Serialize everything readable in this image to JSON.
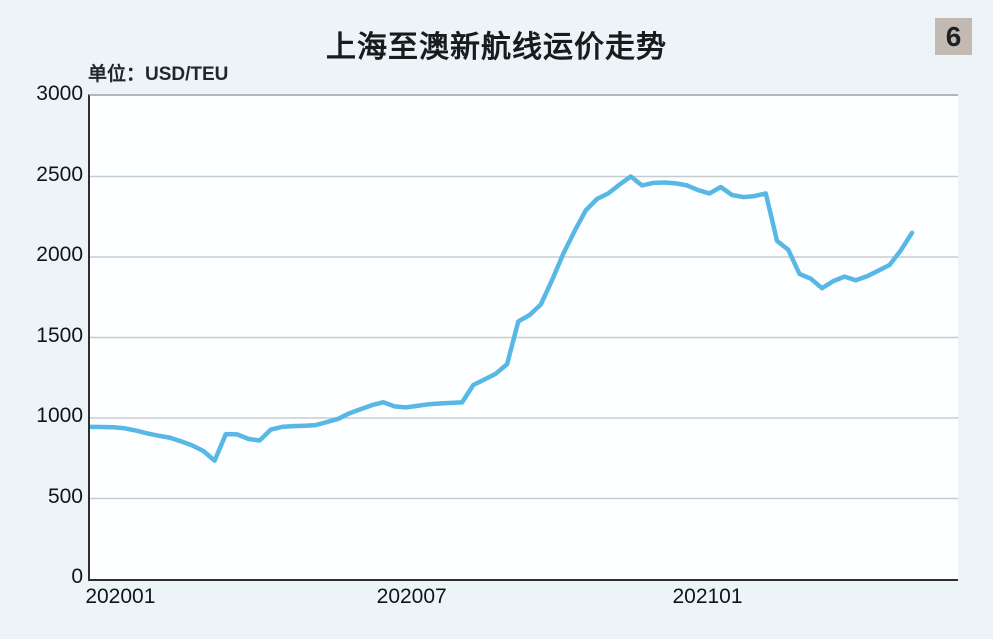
{
  "header": {
    "title": "上海至澳新航线运价走势",
    "badge": "6",
    "unit_label": "单位：USD/TEU"
  },
  "chart_data": {
    "type": "line",
    "title": "上海至澳新航线运价走势",
    "ylabel": "USD/TEU",
    "ylim": [
      0,
      3000
    ],
    "y_ticks": [
      0,
      500,
      1000,
      1500,
      2000,
      2500,
      3000
    ],
    "y_gridlines": [
      500,
      1000,
      1500,
      2000,
      2500
    ],
    "grid": "horizontal",
    "legend": "none",
    "x_ticks": [
      {
        "label": "202001",
        "week_index": 2.8
      },
      {
        "label": "202007",
        "week_index": 28.7
      },
      {
        "label": "202101",
        "week_index": 55.0
      }
    ],
    "x_start_frac": 0.001,
    "x_end_frac": 0.947,
    "series": [
      {
        "name": "上海至澳新航线运价 (USD/TEU)",
        "frequency": "weekly",
        "values": [
          945,
          944,
          942,
          936,
          922,
          905,
          890,
          878,
          855,
          830,
          795,
          735,
          900,
          898,
          870,
          860,
          928,
          945,
          950,
          952,
          956,
          975,
          995,
          1030,
          1055,
          1080,
          1098,
          1072,
          1066,
          1075,
          1085,
          1090,
          1094,
          1097,
          1205,
          1240,
          1275,
          1335,
          1600,
          1640,
          1705,
          1855,
          2020,
          2160,
          2290,
          2360,
          2395,
          2450,
          2500,
          2445,
          2460,
          2463,
          2457,
          2445,
          2415,
          2395,
          2435,
          2385,
          2372,
          2378,
          2395,
          2100,
          2045,
          1895,
          1865,
          1806,
          1850,
          1878,
          1855,
          1880,
          1915,
          1950,
          2040,
          2150
        ]
      }
    ],
    "line_color": "#58b8e5"
  },
  "colors": {
    "background": "#ecf4f8",
    "plot_background": "#fdfeff",
    "gridline": "#c9cccd",
    "axis": "#2d2f30",
    "frame_top": "#b4b6b7",
    "badge_background": "#c2bab2",
    "text": "#181c1e"
  }
}
